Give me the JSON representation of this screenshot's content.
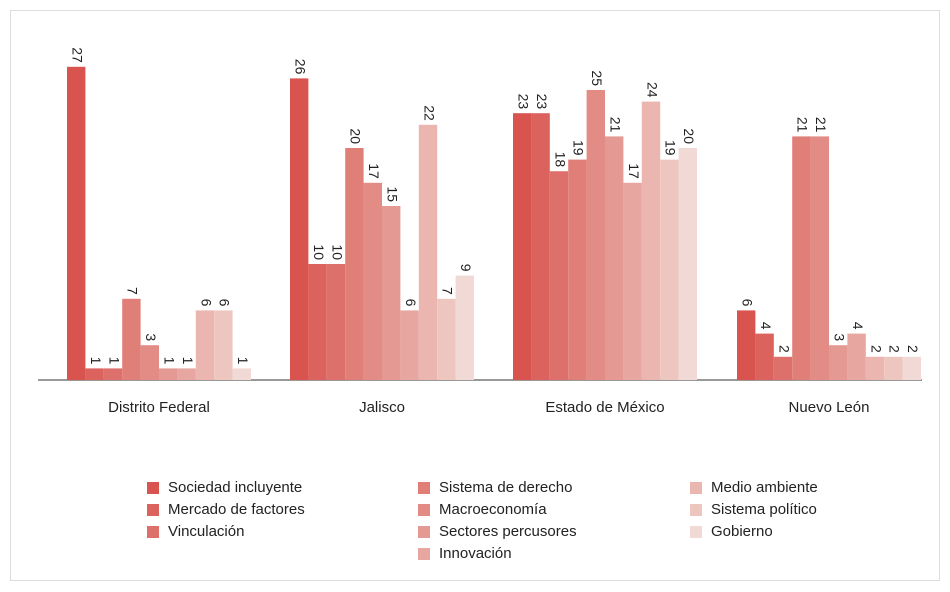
{
  "chart_data": {
    "type": "bar",
    "categories": [
      "Distrito Federal",
      "Jalisco",
      "Estado de México",
      "Nuevo León"
    ],
    "series": [
      {
        "name": "Sociedad incluyente",
        "color": "#d9534f",
        "values": [
          27,
          26,
          23,
          6
        ]
      },
      {
        "name": "Mercado de factores",
        "color": "#dc625e",
        "values": [
          1,
          10,
          23,
          4
        ]
      },
      {
        "name": "Vinculación",
        "color": "#de706b",
        "values": [
          1,
          10,
          18,
          2
        ]
      },
      {
        "name": "Sistema de derecho",
        "color": "#e07e78",
        "values": [
          7,
          20,
          19,
          21
        ]
      },
      {
        "name": "Macroeconomía",
        "color": "#e28c85",
        "values": [
          3,
          17,
          25,
          21
        ]
      },
      {
        "name": "Sectores percusores",
        "color": "#e49992",
        "values": [
          1,
          15,
          21,
          3
        ]
      },
      {
        "name": "Innovación",
        "color": "#e7a7a0",
        "values": [
          1,
          6,
          17,
          4
        ]
      },
      {
        "name": "Medio ambiente",
        "color": "#eab6af",
        "values": [
          6,
          22,
          24,
          2
        ]
      },
      {
        "name": "Sistema político",
        "color": "#edc6c0",
        "values": [
          6,
          7,
          19,
          2
        ]
      },
      {
        "name": "Gobierno",
        "color": "#f1dad6",
        "values": [
          1,
          9,
          20,
          2
        ]
      }
    ]
  }
}
